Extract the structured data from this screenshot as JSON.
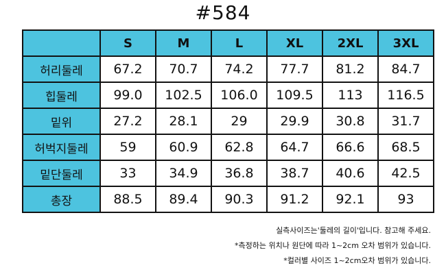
{
  "header": {
    "title": "#584"
  },
  "table": {
    "columns": [
      "S",
      "M",
      "L",
      "XL",
      "2XL",
      "3XL"
    ],
    "rows": [
      [
        "허리둘레",
        "67.2",
        "70.7",
        "74.2",
        "77.7",
        "81.2",
        "84.7"
      ],
      [
        "힙둘레",
        "99.0",
        "102.5",
        "106.0",
        "109.5",
        "113",
        "116.5"
      ],
      [
        "밑위",
        "27.2",
        "28.1",
        "29",
        "29.9",
        "30.8",
        "31.7"
      ],
      [
        "허벅지둘레",
        "59",
        "60.9",
        "62.8",
        "64.7",
        "66.6",
        "68.5"
      ],
      [
        "밑단둘레",
        "33",
        "34.9",
        "36.8",
        "38.7",
        "40.6",
        "42.5"
      ],
      [
        "총장",
        "88.5",
        "89.4",
        "90.3",
        "91.2",
        "92.1",
        "93"
      ]
    ]
  },
  "notes": [
    "실측사이즈는'둘레의 길이'입니다. 참고해 주세요.",
    "*측정하는 위치나 원단에 따라 1~2cm 오차 범위가 있습니다.",
    "*컬러별 사이즈 1~2cm오차 범위가 있습니다."
  ]
}
